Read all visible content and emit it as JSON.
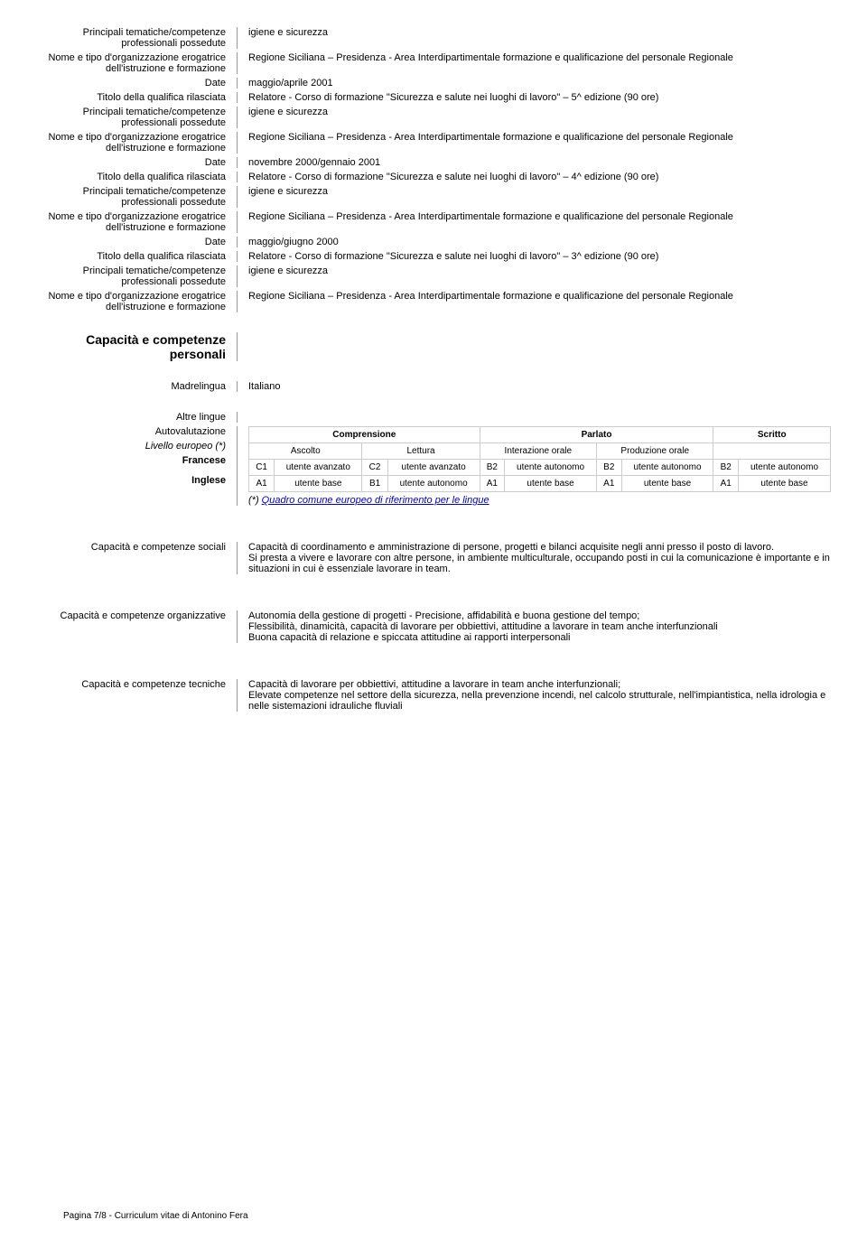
{
  "labels": {
    "tematiche": "Principali tematiche/competenze professionali possedute",
    "org": "Nome e tipo d'organizzazione erogatrice dell'istruzione e formazione",
    "date": "Date",
    "titolo": "Titolo della qualifica rilasciata"
  },
  "entries": [
    {
      "tematiche": "igiene e sicurezza",
      "org": "Regione Siciliana – Presidenza  - Area Interdipartimentale formazione e qualificazione del personale Regionale",
      "date": "maggio/aprile 2001",
      "titolo": "Relatore - Corso di formazione \"Sicurezza e salute nei luoghi di lavoro\" – 5^ edizione  (90 ore)"
    },
    {
      "tematiche": "igiene e sicurezza",
      "org": "Regione Siciliana – Presidenza  - Area Interdipartimentale formazione e qualificazione del personale Regionale",
      "date": "novembre 2000/gennaio 2001",
      "titolo": "Relatore - Corso di formazione \"Sicurezza e salute nei luoghi di lavoro\" – 4^ edizione  (90 ore)"
    },
    {
      "tematiche": "igiene e sicurezza",
      "org": "Regione Siciliana – Presidenza  - Area Interdipartimentale formazione e qualificazione del personale Regionale",
      "date": "maggio/giugno 2000",
      "titolo": "Relatore - Corso di formazione \"Sicurezza e salute nei luoghi di lavoro\" – 3^ edizione  (90 ore)"
    },
    {
      "tematiche": "igiene e sicurezza",
      "org": "Regione Siciliana – Presidenza  - Area Interdipartimentale formazione e qualificazione del personale Regionale"
    }
  ],
  "section_personal": "Capacità e competenze personali",
  "madrelingua_label": "Madrelingua",
  "madrelingua_value": "Italiano",
  "altre_lingue": "Altre lingue",
  "autovalutazione": "Autovalutazione",
  "livello": "Livello europeo (*)",
  "lang_headers": {
    "comprensione": "Comprensione",
    "parlato": "Parlato",
    "scritto": "Scritto",
    "ascolto": "Ascolto",
    "lettura": "Lettura",
    "inter_orale": "Interazione orale",
    "prod_orale": "Produzione orale"
  },
  "languages": [
    {
      "name": "Francese",
      "cells": [
        "C1",
        "utente avanzato",
        "C2",
        "utente avanzato",
        "B2",
        "utente autonomo",
        "B2",
        "utente autonomo",
        "B2",
        "utente autonomo"
      ]
    },
    {
      "name": "Inglese",
      "cells": [
        "A1",
        "utente base",
        "B1",
        "utente autonomo",
        "A1",
        "utente base",
        "A1",
        "utente base",
        "A1",
        "utente base"
      ]
    }
  ],
  "ref_prefix": "(*) ",
  "ref_link": "Quadro comune europeo di riferimento per le lingue",
  "sociali_label": "Capacità e competenze sociali",
  "sociali_value": "Capacità di coordinamento e amministrazione di persone, progetti e bilanci acquisite negli anni presso il posto di lavoro.\nSi presta a vivere e lavorare con altre persone, in ambiente multiculturale, occupando posti in cui la comunicazione è importante e in situazioni in cui è essenziale lavorare in team.",
  "organizzative_label": "Capacità e competenze organizzative",
  "organizzative_value": "Autonomia della gestione di progetti  - Precisione, affidabilità e buona gestione del tempo;\nFlessibilità, dinamicità, capacità di lavorare per obbiettivi, attitudine a lavorare in team anche interfunzionali\nBuona capacità di relazione e spiccata attitudine ai rapporti interpersonali",
  "tecniche_label": "Capacità e competenze tecniche",
  "tecniche_value": "Capacità di lavorare per obbiettivi, attitudine a lavorare in team anche  interfunzionali;\nElevate competenze nel settore della sicurezza, nella prevenzione incendi, nel calcolo strutturale, nell'impiantistica, nella idrologia e nelle sistemazioni idrauliche fluviali",
  "footer": "Pagina 7/8 - Curriculum vitae di Antonino Fera"
}
